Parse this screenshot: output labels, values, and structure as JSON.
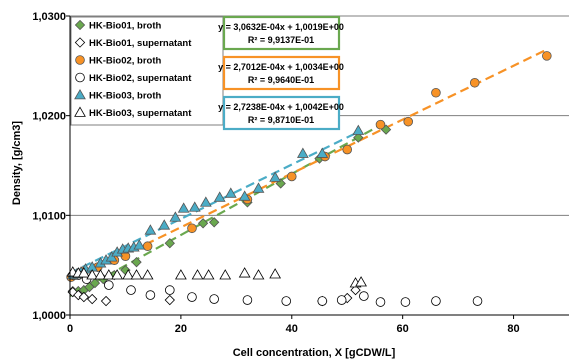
{
  "chart_data": {
    "type": "scatter",
    "title": "",
    "xlabel": "Cell concentration, X [gCDW/L]",
    "ylabel": "Density, [g/cm3]",
    "xlim": [
      0,
      90
    ],
    "ylim": [
      1.0,
      1.03
    ],
    "x_ticks": [
      "0",
      "20",
      "40",
      "60",
      "80"
    ],
    "y_ticks": [
      "1,0000",
      "1,0100",
      "1,0200",
      "1,0300"
    ],
    "grid": "horizontal",
    "legend_position": "top-left",
    "series": [
      {
        "name": "HK-Bio01, broth",
        "marker": "diamond",
        "filled": true,
        "color": "#6aa84f",
        "points": [
          [
            0.5,
            1.0024
          ],
          [
            1.5,
            1.0024
          ],
          [
            2.5,
            1.0025
          ],
          [
            3.5,
            1.0028
          ],
          [
            4.5,
            1.0032
          ],
          [
            6,
            1.0036
          ],
          [
            8,
            1.004
          ],
          [
            10,
            1.0045
          ],
          [
            12,
            1.0053
          ],
          [
            18,
            1.0072
          ],
          [
            24,
            1.0092
          ],
          [
            26,
            1.0093
          ],
          [
            32,
            1.0113
          ],
          [
            38,
            1.0132
          ],
          [
            45,
            1.0157
          ],
          [
            52,
            1.0178
          ],
          [
            57,
            1.0186
          ]
        ]
      },
      {
        "name": "HK-Bio01, supernatant",
        "marker": "diamond",
        "filled": false,
        "color": "#000000",
        "points": [
          [
            0.5,
            1.0023
          ],
          [
            1.5,
            1.002
          ],
          [
            2.5,
            1.0018
          ],
          [
            4,
            1.0016
          ],
          [
            6.5,
            1.0014
          ],
          [
            18,
            1.0015
          ],
          [
            45.5,
            1.0014
          ],
          [
            50,
            1.0017
          ],
          [
            51.5,
            1.0025
          ]
        ]
      },
      {
        "name": "HK-Bio02, broth",
        "marker": "circle",
        "filled": true,
        "color": "#f79226",
        "points": [
          [
            0.2,
            1.0038
          ],
          [
            1,
            1.004
          ],
          [
            1.8,
            1.0042
          ],
          [
            2.5,
            1.0044
          ],
          [
            5,
            1.0048
          ],
          [
            8,
            1.0055
          ],
          [
            10,
            1.0059
          ],
          [
            14,
            1.0069
          ],
          [
            22,
            1.0087
          ],
          [
            32,
            1.0116
          ],
          [
            40,
            1.0139
          ],
          [
            46,
            1.0159
          ],
          [
            50,
            1.0166
          ],
          [
            56,
            1.0191
          ],
          [
            61,
            1.0194
          ],
          [
            66,
            1.0223
          ],
          [
            73,
            1.0233
          ],
          [
            86,
            1.026
          ]
        ]
      },
      {
        "name": "HK-Bio02, supernatant",
        "marker": "circle",
        "filled": false,
        "color": "#000000",
        "points": [
          [
            0.5,
            1.004
          ],
          [
            1.5,
            1.004
          ],
          [
            3,
            1.0036
          ],
          [
            7,
            1.003
          ],
          [
            11,
            1.0025
          ],
          [
            14.5,
            1.002
          ],
          [
            18,
            1.0025
          ],
          [
            22,
            1.0018
          ],
          [
            26,
            1.0016
          ],
          [
            32,
            1.0015
          ],
          [
            39,
            1.0014
          ],
          [
            45.5,
            1.0014
          ],
          [
            49,
            1.0015
          ],
          [
            53,
            1.0019
          ],
          [
            56,
            1.0013
          ],
          [
            60.5,
            1.0013
          ],
          [
            66,
            1.0014
          ],
          [
            73.5,
            1.0014
          ]
        ]
      },
      {
        "name": "HK-Bio03, broth",
        "marker": "triangle",
        "filled": true,
        "color": "#4bacc6",
        "points": [
          [
            0.5,
            1.004
          ],
          [
            1.2,
            1.0041
          ],
          [
            2,
            1.0043
          ],
          [
            2.8,
            1.0046
          ],
          [
            4,
            1.0048
          ],
          [
            5.5,
            1.0052
          ],
          [
            6.5,
            1.0055
          ],
          [
            7.5,
            1.0058
          ],
          [
            8.5,
            1.0063
          ],
          [
            9.5,
            1.0066
          ],
          [
            10.5,
            1.0067
          ],
          [
            11.5,
            1.0068
          ],
          [
            12.5,
            1.007
          ],
          [
            14.5,
            1.0085
          ],
          [
            17,
            1.009
          ],
          [
            19,
            1.0098
          ],
          [
            20.5,
            1.0107
          ],
          [
            22.5,
            1.0108
          ],
          [
            24.5,
            1.0113
          ],
          [
            27,
            1.0118
          ],
          [
            29,
            1.0122
          ],
          [
            31.5,
            1.0119
          ],
          [
            34,
            1.0127
          ],
          [
            37,
            1.0138
          ],
          [
            42,
            1.0162
          ],
          [
            45.5,
            1.0162
          ],
          [
            52,
            1.0185
          ]
        ]
      },
      {
        "name": "HK-Bio03, supernatant",
        "marker": "triangle",
        "filled": false,
        "color": "#000000",
        "points": [
          [
            0.5,
            1.0043
          ],
          [
            1.5,
            1.0042
          ],
          [
            2.5,
            1.0042
          ],
          [
            4,
            1.004
          ],
          [
            5.5,
            1.004
          ],
          [
            7,
            1.004
          ],
          [
            8.5,
            1.004
          ],
          [
            10.5,
            1.004
          ],
          [
            12,
            1.004
          ],
          [
            14,
            1.004
          ],
          [
            20,
            1.004
          ],
          [
            23,
            1.004
          ],
          [
            25,
            1.004
          ],
          [
            28,
            1.004
          ],
          [
            31.5,
            1.0042
          ],
          [
            34,
            1.004
          ],
          [
            37,
            1.0041
          ],
          [
            51.5,
            1.0032
          ],
          [
            52.5,
            1.0033
          ]
        ]
      }
    ],
    "trendlines": [
      {
        "series": "HK-Bio01, broth",
        "slope": 0.00030632,
        "intercept": 1.0019,
        "x_range": [
          0,
          57
        ],
        "color": "#6aa84f",
        "equation": "y = 3,0632E-04x + 1,0019E+00",
        "r2": "R² = 9,9137E-01"
      },
      {
        "series": "HK-Bio02, broth",
        "slope": 0.00027012,
        "intercept": 1.0034,
        "x_range": [
          0,
          86
        ],
        "color": "#f79226",
        "equation": "y = 2,7012E-04x + 1,0034E+00",
        "r2": "R² = 9,9640E-01"
      },
      {
        "series": "HK-Bio03, broth",
        "slope": 0.00027238,
        "intercept": 1.0042,
        "x_range": [
          0,
          52
        ],
        "color": "#4bacc6",
        "equation": "y = 2,7238E-04x + 1,0042E+00",
        "r2": "R² = 9,8710E-01"
      }
    ]
  }
}
